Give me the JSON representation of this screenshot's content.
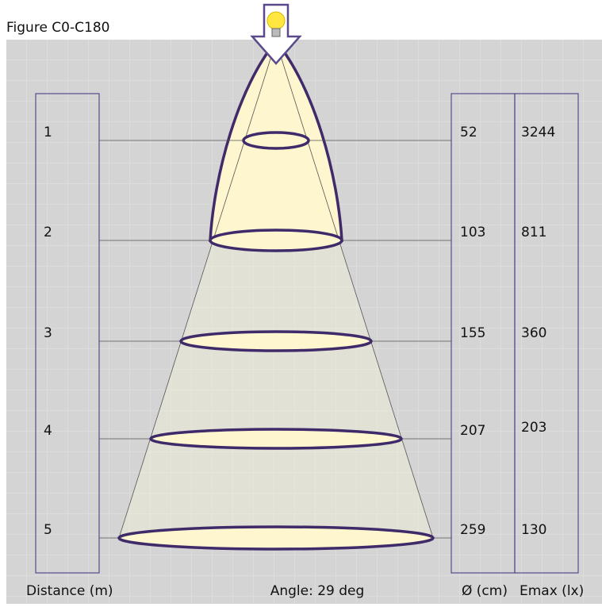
{
  "title": "Figure C0-C180",
  "rows": [
    {
      "distance": 1,
      "diameter": 52,
      "emax": 3244
    },
    {
      "distance": 2,
      "diameter": 103,
      "emax": 811
    },
    {
      "distance": 3,
      "diameter": 155,
      "emax": 360
    },
    {
      "distance": 4,
      "diameter": 207,
      "emax": 203
    },
    {
      "distance": 5,
      "diameter": 259,
      "emax": 130
    }
  ],
  "footer": {
    "distance_label": "Distance (m)",
    "angle": "Angle: 29 deg",
    "diameter_label": "Ø (cm)",
    "emax_label": "Emax (lx)"
  }
}
